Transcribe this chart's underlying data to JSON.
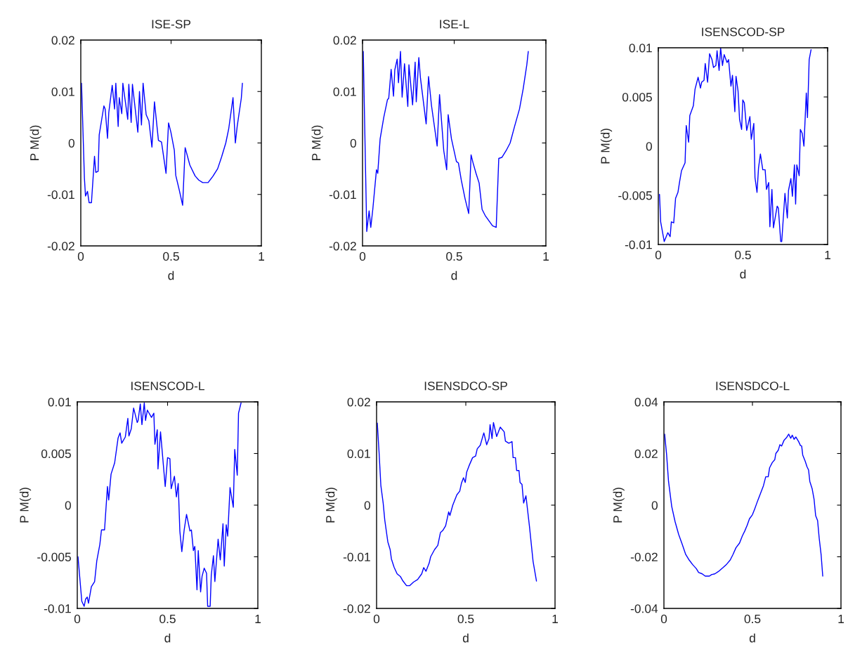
{
  "chart_data": [
    {
      "type": "line",
      "title": "ISE-SP",
      "xlabel": "d",
      "ylabel": "P M(d)",
      "xlim": [
        0,
        1
      ],
      "ylim": [
        -0.02,
        0.02
      ],
      "xticks": [
        0,
        0.5,
        1
      ],
      "yticks": [
        -0.02,
        -0.01,
        0,
        0.01,
        0.02
      ],
      "grid": false,
      "legend": false,
      "series": [
        {
          "color": "#0000ff",
          "x": [
            0.004,
            0.02,
            0.026,
            0.037,
            0.046,
            0.059,
            0.076,
            0.083,
            0.096,
            0.102,
            0.128,
            0.135,
            0.148,
            0.155,
            0.174,
            0.187,
            0.194,
            0.207,
            0.213,
            0.227,
            0.233,
            0.26,
            0.266,
            0.279,
            0.286,
            0.316,
            0.325,
            0.336,
            0.345,
            0.362,
            0.377,
            0.394,
            0.408,
            0.43,
            0.447,
            0.472,
            0.486,
            0.499,
            0.518,
            0.526,
            0.545,
            0.564,
            0.578,
            0.604,
            0.633,
            0.653,
            0.675,
            0.705,
            0.731,
            0.758,
            0.78,
            0.803,
            0.819,
            0.843,
            0.856,
            0.866,
            0.889,
            0.895
          ],
          "values": [
            0.0116,
            -0.0068,
            -0.0103,
            -0.0094,
            -0.0116,
            -0.0116,
            -0.0026,
            -0.0057,
            -0.0055,
            0.0016,
            0.0072,
            0.0066,
            0.0009,
            0.0059,
            0.0112,
            0.0066,
            0.0116,
            0.0032,
            0.0088,
            0.0057,
            0.0116,
            0.0046,
            0.0114,
            0.004,
            0.0114,
            0.0021,
            0.01,
            0.0035,
            0.0116,
            0.0055,
            0.0043,
            -0.0008,
            0.008,
            0.0005,
            0.0002,
            -0.0059,
            0.0039,
            0.0021,
            -0.0014,
            -0.0063,
            -0.0091,
            -0.0121,
            -0.0009,
            -0.0043,
            -0.0064,
            -0.0072,
            -0.0077,
            -0.0077,
            -0.0065,
            -0.005,
            -0.0027,
            0.0,
            0.0027,
            0.0088,
            0.0,
            0.0032,
            0.0087,
            0.0116
          ]
        }
      ]
    },
    {
      "type": "line",
      "title": "ISE-L",
      "xlabel": "d",
      "ylabel": "P M(d)",
      "xlim": [
        0,
        1
      ],
      "ylim": [
        -0.02,
        0.02
      ],
      "xticks": [
        0,
        0.5,
        1
      ],
      "yticks": [
        -0.02,
        -0.01,
        0,
        0.01,
        0.02
      ],
      "grid": false,
      "legend": false,
      "series": [
        {
          "color": "#0000ff",
          "x": [
            0.004,
            0.023,
            0.036,
            0.045,
            0.056,
            0.076,
            0.083,
            0.096,
            0.116,
            0.136,
            0.143,
            0.156,
            0.169,
            0.176,
            0.189,
            0.196,
            0.207,
            0.216,
            0.229,
            0.247,
            0.253,
            0.273,
            0.287,
            0.293,
            0.307,
            0.316,
            0.347,
            0.36,
            0.376,
            0.407,
            0.42,
            0.443,
            0.459,
            0.467,
            0.485,
            0.512,
            0.523,
            0.539,
            0.559,
            0.579,
            0.592,
            0.603,
            0.619,
            0.636,
            0.652,
            0.669,
            0.709,
            0.729,
            0.743,
            0.76,
            0.783,
            0.805,
            0.829,
            0.856,
            0.876,
            0.896,
            0.904
          ],
          "values": [
            0.0178,
            -0.0172,
            -0.0132,
            -0.0164,
            -0.0129,
            -0.0052,
            -0.0059,
            0.0008,
            0.005,
            0.0084,
            0.0087,
            0.0143,
            0.0091,
            0.0142,
            0.0163,
            0.0117,
            0.0178,
            0.0089,
            0.0154,
            0.0071,
            0.0152,
            0.0074,
            0.0157,
            0.008,
            0.0166,
            0.0126,
            0.0037,
            0.0129,
            0.0073,
            -0.0006,
            0.0094,
            -0.0015,
            -0.0052,
            0.0055,
            0.0008,
            -0.0036,
            -0.0039,
            -0.0073,
            -0.0108,
            -0.0137,
            -0.0023,
            -0.0039,
            -0.0059,
            -0.0078,
            -0.0129,
            -0.0141,
            -0.0161,
            -0.0164,
            -0.003,
            -0.0028,
            -0.0015,
            0.0,
            0.0032,
            0.0066,
            0.0105,
            0.0152,
            0.0178
          ]
        }
      ]
    },
    {
      "type": "line",
      "title": "ISENSCOD-SP",
      "xlabel": "d",
      "ylabel": "P M(d)",
      "xlim": [
        0,
        1
      ],
      "ylim": [
        -0.01,
        0.01
      ],
      "xticks": [
        0,
        0.5,
        1
      ],
      "yticks": [
        -0.01,
        -0.005,
        0,
        0.005,
        0.01
      ],
      "grid": false,
      "legend": false,
      "series": [
        {
          "color": "#0000ff",
          "x": [
            0.007,
            0.014,
            0.035,
            0.056,
            0.07,
            0.077,
            0.091,
            0.102,
            0.116,
            0.126,
            0.137,
            0.158,
            0.165,
            0.179,
            0.186,
            0.207,
            0.217,
            0.235,
            0.249,
            0.256,
            0.27,
            0.277,
            0.291,
            0.303,
            0.317,
            0.326,
            0.34,
            0.347,
            0.359,
            0.368,
            0.379,
            0.389,
            0.406,
            0.415,
            0.429,
            0.438,
            0.452,
            0.459,
            0.471,
            0.48,
            0.492,
            0.499,
            0.508,
            0.522,
            0.541,
            0.549,
            0.564,
            0.571,
            0.583,
            0.592,
            0.603,
            0.617,
            0.631,
            0.639,
            0.652,
            0.659,
            0.671,
            0.68,
            0.702,
            0.709,
            0.723,
            0.729,
            0.748,
            0.762,
            0.769,
            0.783,
            0.792,
            0.804,
            0.811,
            0.818,
            0.832,
            0.839,
            0.85,
            0.86,
            0.874,
            0.881,
            0.891,
            0.902
          ],
          "values": [
            -0.0049,
            -0.0077,
            -0.0097,
            -0.0088,
            -0.0092,
            -0.0077,
            -0.0078,
            -0.0053,
            -0.0047,
            -0.0036,
            -0.0025,
            -0.0017,
            0.0021,
            0.0004,
            0.0031,
            0.0041,
            0.0058,
            0.007,
            0.0059,
            0.0065,
            0.0067,
            0.0084,
            0.0065,
            0.0094,
            0.0088,
            0.008,
            0.0082,
            0.0097,
            0.0077,
            0.01,
            0.0082,
            0.0093,
            0.0085,
            0.0088,
            0.0061,
            0.0072,
            0.0035,
            0.0071,
            0.0056,
            0.0027,
            0.0017,
            0.0047,
            0.0044,
            0.0016,
            0.003,
            0.0007,
            0.0023,
            -0.0032,
            -0.0047,
            -0.0022,
            -0.0008,
            -0.0024,
            -0.0024,
            -0.0044,
            -0.0037,
            -0.0082,
            -0.0044,
            -0.0083,
            -0.0061,
            -0.0063,
            -0.0097,
            -0.0097,
            -0.0048,
            -0.0073,
            -0.0045,
            -0.0033,
            -0.0051,
            -0.0019,
            -0.0059,
            -0.0019,
            -0.003,
            0.0017,
            0.0013,
            0.0,
            0.0054,
            0.0029,
            0.0088,
            0.0098
          ]
        }
      ]
    },
    {
      "type": "line",
      "title": "ISENSCOD-L",
      "xlabel": "d",
      "ylabel": "P M(d)",
      "xlim": [
        0,
        1
      ],
      "ylim": [
        -0.01,
        0.01
      ],
      "xticks": [
        0,
        0.5,
        1
      ],
      "yticks": [
        -0.01,
        -0.005,
        0,
        0.005,
        0.01
      ],
      "grid": false,
      "legend": false,
      "series": [
        {
          "color": "#0000ff",
          "x": [
            0.004,
            0.025,
            0.038,
            0.046,
            0.055,
            0.062,
            0.078,
            0.096,
            0.108,
            0.125,
            0.134,
            0.151,
            0.167,
            0.174,
            0.187,
            0.207,
            0.226,
            0.237,
            0.246,
            0.266,
            0.28,
            0.286,
            0.299,
            0.312,
            0.332,
            0.337,
            0.349,
            0.358,
            0.371,
            0.378,
            0.388,
            0.411,
            0.424,
            0.43,
            0.443,
            0.447,
            0.461,
            0.487,
            0.5,
            0.513,
            0.52,
            0.538,
            0.549,
            0.559,
            0.568,
            0.579,
            0.592,
            0.605,
            0.624,
            0.632,
            0.643,
            0.651,
            0.663,
            0.67,
            0.683,
            0.691,
            0.703,
            0.716,
            0.722,
            0.736,
            0.742,
            0.754,
            0.762,
            0.78,
            0.792,
            0.807,
            0.814,
            0.825,
            0.833,
            0.846,
            0.864,
            0.872,
            0.886,
            0.893,
            0.907
          ],
          "values": [
            -0.005,
            -0.0093,
            -0.0098,
            -0.0091,
            -0.0089,
            -0.0095,
            -0.0079,
            -0.0074,
            -0.0054,
            -0.0038,
            -0.0024,
            -0.0024,
            0.0018,
            0.0005,
            0.003,
            0.0041,
            0.0065,
            0.007,
            0.006,
            0.0066,
            0.0084,
            0.0067,
            0.0074,
            0.0094,
            0.008,
            0.0082,
            0.0098,
            0.0078,
            0.0099,
            0.0082,
            0.0092,
            0.0085,
            0.0089,
            0.0059,
            0.0073,
            0.0035,
            0.0071,
            0.0018,
            0.0046,
            0.0045,
            0.0016,
            0.0028,
            0.0008,
            0.0021,
            -0.0025,
            -0.0045,
            -0.0024,
            -0.0009,
            -0.0025,
            -0.0024,
            -0.0044,
            -0.004,
            -0.0082,
            -0.0044,
            -0.0084,
            -0.0069,
            -0.0061,
            -0.0066,
            -0.0098,
            -0.0098,
            -0.0068,
            -0.0049,
            -0.0074,
            -0.0033,
            -0.0053,
            -0.0018,
            -0.0059,
            -0.0019,
            -0.003,
            0.0017,
            -0.0002,
            0.0054,
            0.0029,
            0.0089,
            0.0099
          ]
        }
      ]
    },
    {
      "type": "line",
      "title": "ISENSDCO-SP",
      "xlabel": "d",
      "ylabel": "P M(d)",
      "xlim": [
        0,
        1
      ],
      "ylim": [
        -0.02,
        0.02
      ],
      "xticks": [
        0,
        0.5,
        1
      ],
      "yticks": [
        -0.02,
        -0.01,
        0,
        0.01,
        0.02
      ],
      "grid": false,
      "legend": false,
      "series": [
        {
          "color": "#0000ff",
          "x": [
            0.004,
            0.014,
            0.024,
            0.037,
            0.046,
            0.063,
            0.076,
            0.083,
            0.098,
            0.115,
            0.133,
            0.148,
            0.168,
            0.185,
            0.207,
            0.23,
            0.253,
            0.264,
            0.277,
            0.295,
            0.303,
            0.325,
            0.343,
            0.358,
            0.371,
            0.387,
            0.404,
            0.411,
            0.427,
            0.45,
            0.466,
            0.476,
            0.487,
            0.497,
            0.505,
            0.518,
            0.538,
            0.555,
            0.564,
            0.581,
            0.601,
            0.617,
            0.63,
            0.636,
            0.647,
            0.655,
            0.673,
            0.693,
            0.715,
            0.722,
            0.741,
            0.759,
            0.765,
            0.778,
            0.785,
            0.798,
            0.804,
            0.815,
            0.824,
            0.837,
            0.857,
            0.877,
            0.896
          ],
          "values": [
            0.0159,
            0.0102,
            0.0038,
            0.0004,
            -0.0029,
            -0.0071,
            -0.0086,
            -0.0104,
            -0.012,
            -0.0133,
            -0.0138,
            -0.0147,
            -0.0156,
            -0.0156,
            -0.0149,
            -0.0144,
            -0.0133,
            -0.0121,
            -0.0128,
            -0.0112,
            -0.01,
            -0.0086,
            -0.0078,
            -0.0053,
            -0.0049,
            -0.004,
            -0.0013,
            -0.002,
            0.0,
            0.002,
            0.0027,
            0.0043,
            0.0053,
            0.0044,
            0.0064,
            0.0076,
            0.0092,
            0.0095,
            0.0109,
            0.0116,
            0.014,
            0.0117,
            0.0129,
            0.0156,
            0.0129,
            0.016,
            0.0133,
            0.0151,
            0.0142,
            0.0124,
            0.012,
            0.0123,
            0.0092,
            0.0092,
            0.0067,
            0.0067,
            0.0044,
            0.004,
            0.0004,
            0.0018,
            -0.0042,
            -0.0109,
            -0.0147
          ]
        }
      ]
    },
    {
      "type": "line",
      "title": "ISENSDCO-L",
      "xlabel": "d",
      "ylabel": "P M(d)",
      "xlim": [
        0,
        1
      ],
      "ylim": [
        -0.04,
        0.04
      ],
      "xticks": [
        0,
        0.5,
        1
      ],
      "yticks": [
        -0.04,
        -0.02,
        0,
        0.02,
        0.04
      ],
      "grid": false,
      "legend": false,
      "series": [
        {
          "color": "#0000ff",
          "x": [
            0.004,
            0.015,
            0.026,
            0.044,
            0.063,
            0.083,
            0.103,
            0.123,
            0.143,
            0.163,
            0.183,
            0.196,
            0.216,
            0.233,
            0.257,
            0.269,
            0.288,
            0.308,
            0.332,
            0.354,
            0.374,
            0.39,
            0.407,
            0.427,
            0.443,
            0.456,
            0.47,
            0.483,
            0.5,
            0.513,
            0.53,
            0.546,
            0.562,
            0.575,
            0.589,
            0.597,
            0.612,
            0.626,
            0.632,
            0.646,
            0.655,
            0.665,
            0.679,
            0.692,
            0.705,
            0.716,
            0.725,
            0.735,
            0.745,
            0.761,
            0.771,
            0.778,
            0.784,
            0.798,
            0.808,
            0.817,
            0.824,
            0.837,
            0.848,
            0.857,
            0.868,
            0.877,
            0.888,
            0.897
          ],
          "values": [
            0.0275,
            0.0197,
            0.0092,
            -0.0005,
            -0.0064,
            -0.0113,
            -0.0151,
            -0.0191,
            -0.0213,
            -0.0231,
            -0.0246,
            -0.0261,
            -0.0266,
            -0.0275,
            -0.0275,
            -0.0269,
            -0.0266,
            -0.0257,
            -0.0243,
            -0.0229,
            -0.0213,
            -0.0191,
            -0.0165,
            -0.0147,
            -0.0119,
            -0.0101,
            -0.0078,
            -0.0053,
            -0.0037,
            -0.0014,
            0.0018,
            0.0046,
            0.0075,
            0.011,
            0.011,
            0.0145,
            0.0165,
            0.0176,
            0.02,
            0.0213,
            0.0234,
            0.0229,
            0.0252,
            0.0261,
            0.0275,
            0.0259,
            0.0271,
            0.0255,
            0.0264,
            0.0246,
            0.0231,
            0.0229,
            0.0194,
            0.017,
            0.0149,
            0.0136,
            0.0092,
            0.0064,
            0.0023,
            -0.0041,
            -0.006,
            -0.0128,
            -0.0193,
            -0.0275
          ]
        }
      ]
    }
  ]
}
